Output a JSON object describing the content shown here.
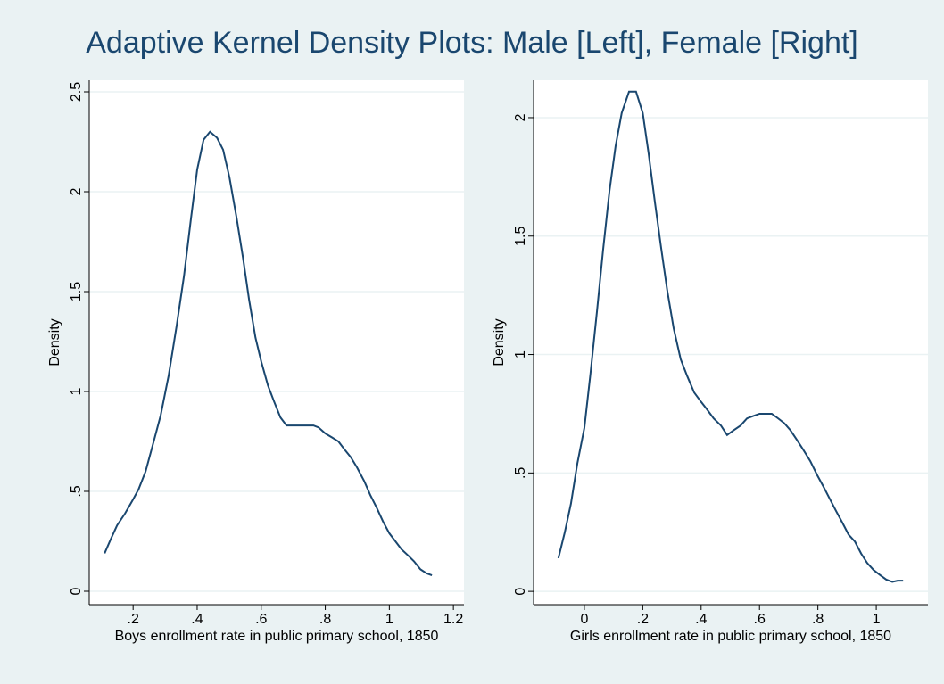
{
  "title": "Adaptive Kernel Density Plots: Male [Left], Female [Right]",
  "chart_data": [
    {
      "type": "line",
      "x_label": "Boys enrollment rate in public primary school, 1850",
      "y_label": "Density",
      "color": "#1a476f",
      "grid": true,
      "xlim": [
        0.063,
        1.233
      ],
      "ylim": [
        -0.067,
        2.558
      ],
      "xticks": [
        {
          "value": 0.2,
          "label": ".2"
        },
        {
          "value": 0.4,
          "label": ".4"
        },
        {
          "value": 0.6,
          "label": ".6"
        },
        {
          "value": 0.8,
          "label": ".8"
        },
        1,
        1.2
      ],
      "yticks": [
        0,
        {
          "value": 0.5,
          "label": ".5"
        },
        1,
        1.5,
        2,
        2.5
      ],
      "x": [
        0.111,
        0.13,
        0.15,
        0.175,
        0.2,
        0.217,
        0.239,
        0.261,
        0.286,
        0.311,
        0.336,
        0.359,
        0.381,
        0.4,
        0.42,
        0.44,
        0.462,
        0.481,
        0.501,
        0.523,
        0.543,
        0.562,
        0.582,
        0.6,
        0.621,
        0.64,
        0.66,
        0.679,
        0.699,
        0.74,
        0.763,
        0.779,
        0.8,
        0.821,
        0.841,
        0.86,
        0.88,
        0.899,
        0.922,
        0.941,
        0.96,
        0.98,
        1.0,
        1.019,
        1.038,
        1.058,
        1.077,
        1.097,
        1.116,
        1.133
      ],
      "values": [
        0.19,
        0.26,
        0.33,
        0.39,
        0.46,
        0.51,
        0.6,
        0.73,
        0.88,
        1.08,
        1.33,
        1.58,
        1.87,
        2.11,
        2.26,
        2.3,
        2.27,
        2.21,
        2.07,
        1.87,
        1.67,
        1.46,
        1.27,
        1.15,
        1.03,
        0.95,
        0.87,
        0.83,
        0.83,
        0.83,
        0.83,
        0.82,
        0.79,
        0.77,
        0.75,
        0.71,
        0.67,
        0.62,
        0.55,
        0.48,
        0.42,
        0.35,
        0.29,
        0.25,
        0.21,
        0.18,
        0.15,
        0.11,
        0.09,
        0.08
      ]
    },
    {
      "type": "line",
      "x_label": "Girls enrollment rate in public primary school, 1850",
      "y_label": "Density",
      "color": "#1a476f",
      "grid": true,
      "xlim": [
        -0.174,
        1.177
      ],
      "ylim": [
        -0.056,
        2.158
      ],
      "xticks": [
        0,
        {
          "value": 0.2,
          "label": ".2"
        },
        {
          "value": 0.4,
          "label": ".4"
        },
        {
          "value": 0.6,
          "label": ".6"
        },
        {
          "value": 0.8,
          "label": ".8"
        },
        1
      ],
      "yticks": [
        0,
        {
          "value": 0.5,
          "label": ".5"
        },
        1,
        1.5,
        2
      ],
      "x": [
        -0.089,
        -0.067,
        -0.046,
        -0.024,
        0.0,
        0.021,
        0.043,
        0.064,
        0.086,
        0.107,
        0.128,
        0.153,
        0.177,
        0.2,
        0.22,
        0.242,
        0.263,
        0.284,
        0.306,
        0.33,
        0.352,
        0.376,
        0.4,
        0.419,
        0.443,
        0.468,
        0.489,
        0.511,
        0.535,
        0.557,
        0.578,
        0.6,
        0.621,
        0.642,
        0.664,
        0.685,
        0.706,
        0.728,
        0.749,
        0.774,
        0.798,
        0.82,
        0.841,
        0.862,
        0.884,
        0.905,
        0.927,
        0.948,
        0.969,
        0.991,
        1.012,
        1.034,
        1.055,
        1.073,
        1.092
      ],
      "values": [
        0.14,
        0.25,
        0.37,
        0.54,
        0.69,
        0.92,
        1.18,
        1.44,
        1.69,
        1.88,
        2.02,
        2.11,
        2.11,
        2.02,
        1.85,
        1.64,
        1.45,
        1.27,
        1.11,
        0.98,
        0.91,
        0.84,
        0.8,
        0.77,
        0.73,
        0.7,
        0.66,
        0.68,
        0.7,
        0.73,
        0.74,
        0.75,
        0.75,
        0.75,
        0.73,
        0.71,
        0.68,
        0.64,
        0.6,
        0.55,
        0.49,
        0.44,
        0.39,
        0.34,
        0.29,
        0.24,
        0.21,
        0.16,
        0.12,
        0.09,
        0.07,
        0.05,
        0.04,
        0.045,
        0.045
      ]
    }
  ]
}
